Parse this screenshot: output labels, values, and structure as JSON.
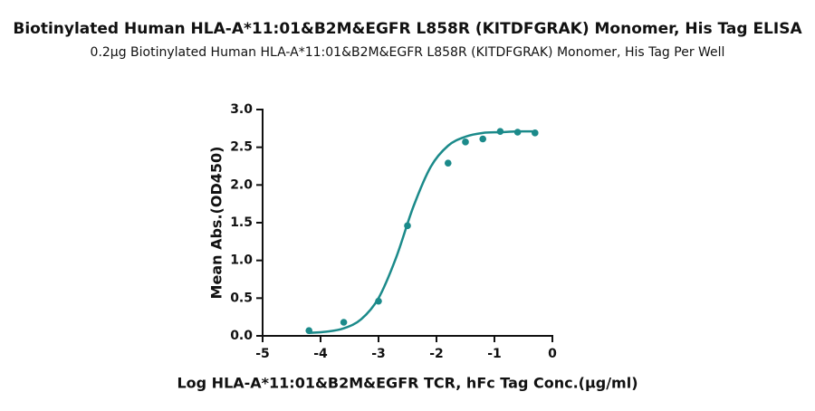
{
  "chart_data": {
    "type": "scatter",
    "title": "Biotinylated Human HLA-A*11:01&B2M&EGFR L858R (KITDFGRAK) Monomer, His Tag ELISA",
    "subtitle": "0.2μg Biotinylated Human HLA-A*11:01&B2M&EGFR L858R (KITDFGRAK) Monomer, His Tag Per Well",
    "x_label": "Log HLA-A*11:01&B2M&EGFR TCR, hFc Tag Conc.(μg/ml)",
    "y_label": "Mean Abs.(OD450)",
    "xlim": [
      -5,
      0
    ],
    "xticks": [
      -5,
      -4,
      -3,
      -2,
      -1,
      0
    ],
    "ylim": [
      0,
      3
    ],
    "yticks": [
      {
        "value": 0,
        "label": "0.0"
      },
      {
        "value": 0.5,
        "label": "0.5"
      },
      {
        "value": 1,
        "label": "1.0"
      },
      {
        "value": 1.5,
        "label": "1.5"
      },
      {
        "value": 2,
        "label": "2.0"
      },
      {
        "value": 2.5,
        "label": "2.5"
      },
      {
        "value": 3,
        "label": "3.0"
      }
    ],
    "grid": false,
    "series": [
      {
        "type": "scatter",
        "color": "#1b8a8a",
        "x": [
          -4.2,
          -3.6,
          -3.0,
          -2.5,
          -1.8,
          -1.5,
          -1.2,
          -0.9,
          -0.6,
          -0.3
        ],
        "values": [
          0.07,
          0.18,
          0.46,
          1.46,
          2.29,
          2.57,
          2.61,
          2.71,
          2.7,
          2.69
        ]
      },
      {
        "type": "line",
        "color": "#1b8a8a",
        "x": [
          -4.2,
          -3.9,
          -3.6,
          -3.3,
          -3.0,
          -2.7,
          -2.4,
          -2.1,
          -1.8,
          -1.5,
          -1.2,
          -0.9,
          -0.6,
          -0.3
        ],
        "values": [
          0.04,
          0.055,
          0.1,
          0.22,
          0.5,
          1.03,
          1.71,
          2.24,
          2.52,
          2.64,
          2.69,
          2.7,
          2.71,
          2.71
        ]
      }
    ]
  }
}
